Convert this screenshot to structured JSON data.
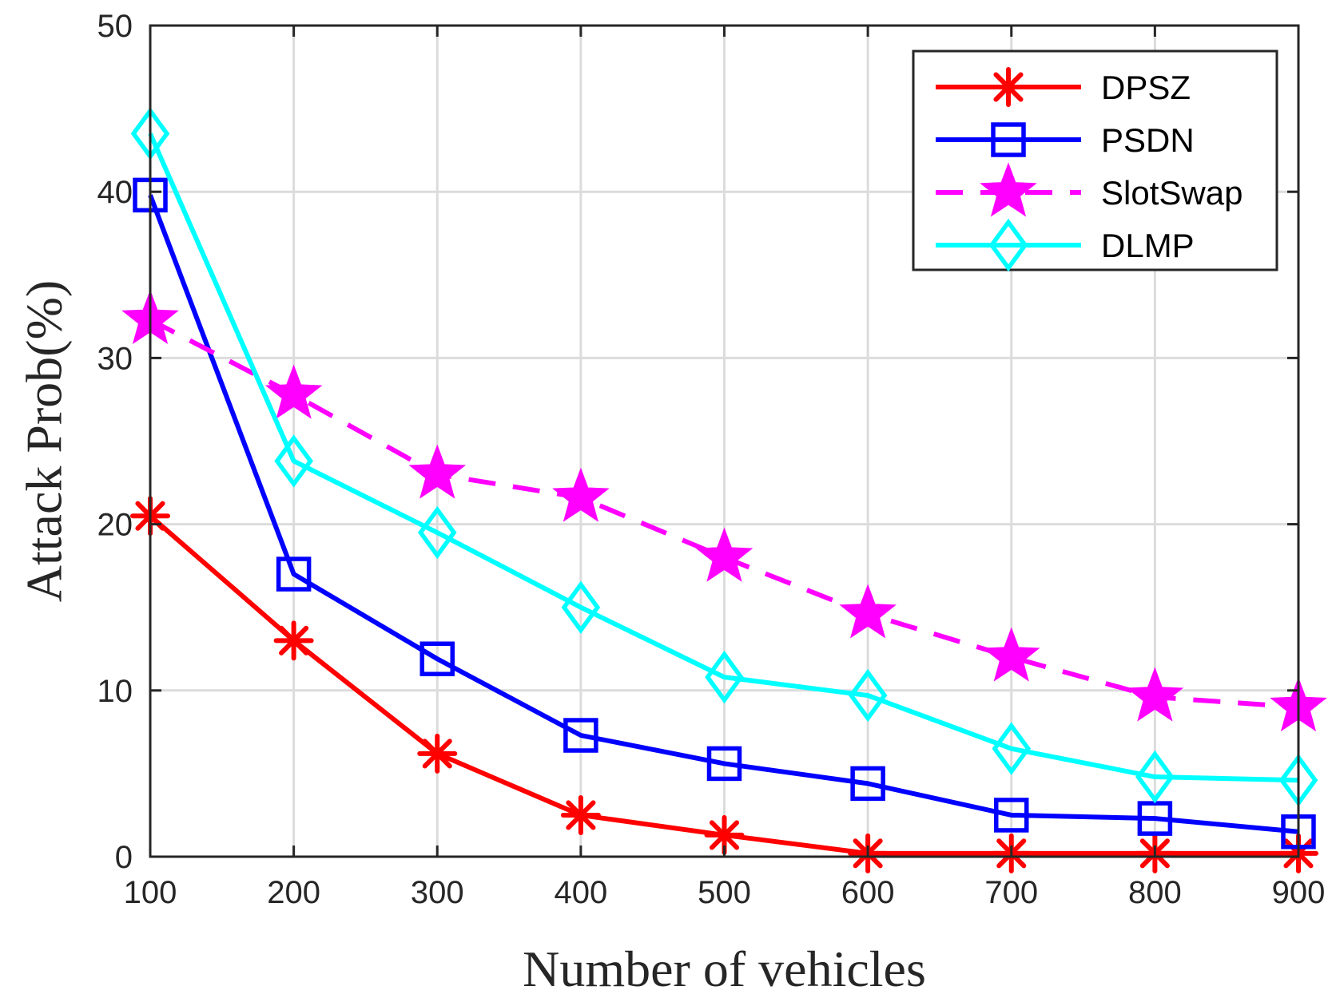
{
  "chart_data": {
    "type": "line",
    "title": "",
    "xlabel": "Number of vehicles",
    "ylabel": "Attack Prob(%)",
    "x": [
      100,
      200,
      300,
      400,
      500,
      600,
      700,
      800,
      900
    ],
    "xlim": [
      100,
      900
    ],
    "ylim": [
      0,
      50
    ],
    "xticks": [
      "100",
      "200",
      "300",
      "400",
      "500",
      "600",
      "700",
      "800",
      "900"
    ],
    "yticks": [
      "0",
      "10",
      "20",
      "30",
      "40",
      "50"
    ],
    "grid": true,
    "legend_position": "top-right",
    "series": [
      {
        "name": "DPSZ",
        "values": [
          20.5,
          13.0,
          6.2,
          2.5,
          1.3,
          0.2,
          0.2,
          0.2,
          0.2
        ],
        "color": "#ff0000",
        "marker": "asterisk",
        "line_style": "solid"
      },
      {
        "name": "PSDN",
        "values": [
          39.8,
          17.0,
          11.9,
          7.3,
          5.6,
          4.4,
          2.5,
          2.3,
          1.5
        ],
        "color": "#0000ff",
        "marker": "square",
        "line_style": "solid"
      },
      {
        "name": "SlotSwap",
        "values": [
          32.3,
          27.8,
          23.0,
          21.6,
          18.0,
          14.6,
          12.0,
          9.6,
          9.0
        ],
        "color": "#ff00ff",
        "marker": "star",
        "line_style": "dashed"
      },
      {
        "name": "DLMP",
        "values": [
          43.5,
          23.8,
          19.5,
          15.0,
          10.8,
          9.7,
          6.5,
          4.8,
          4.6
        ],
        "color": "#00ffff",
        "marker": "diamond",
        "line_style": "solid"
      }
    ]
  }
}
